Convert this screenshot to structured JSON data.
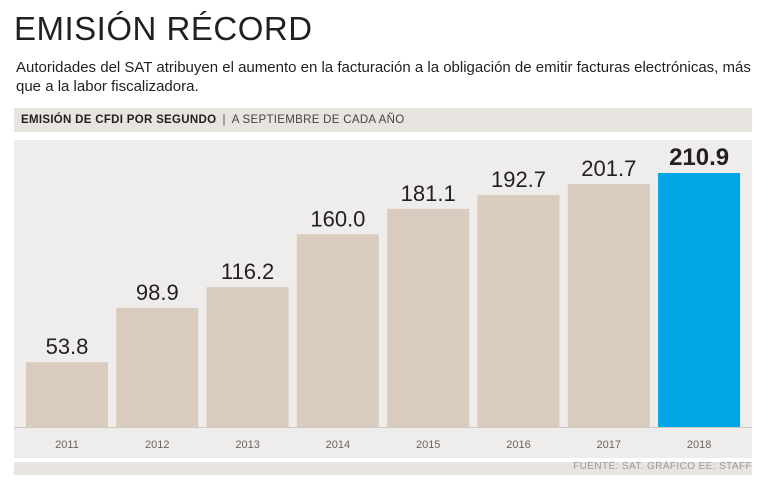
{
  "header": {
    "title": "EMISIÓN RÉCORD",
    "subtitle": "Autoridades del SAT atribuyen el aumento en la facturación a la obligación de emitir facturas electrónicas, más que a la labor fiscalizadora."
  },
  "section": {
    "metric_label": "EMISIÓN DE CFDI POR SEGUNDO",
    "separator": "|",
    "period_label": "A SEPTIEMBRE DE CADA AÑO"
  },
  "footer": {
    "source": "FUENTE: SAT. GRÁFICO EE: STAFF"
  },
  "colors": {
    "bar": "#d9cbbd",
    "highlight_bar": "#00a5e3",
    "background": "#efedeb"
  },
  "chart_data": {
    "type": "bar",
    "title": "EMISIÓN DE CFDI POR SEGUNDO",
    "subtitle": "A SEPTIEMBRE DE CADA AÑO",
    "categories": [
      "2011",
      "2012",
      "2013",
      "2014",
      "2015",
      "2016",
      "2017",
      "2018"
    ],
    "values": [
      53.8,
      98.9,
      116.2,
      160.0,
      181.1,
      192.7,
      201.7,
      210.9
    ],
    "value_labels": [
      "53.8",
      "98.9",
      "116.2",
      "160.0",
      "181.1",
      "192.7",
      "201.7",
      "210.9"
    ],
    "highlight_index": 7,
    "xlabel": "",
    "ylabel": "",
    "ylim": [
      0,
      210.9
    ],
    "grid": false,
    "legend": "none"
  }
}
